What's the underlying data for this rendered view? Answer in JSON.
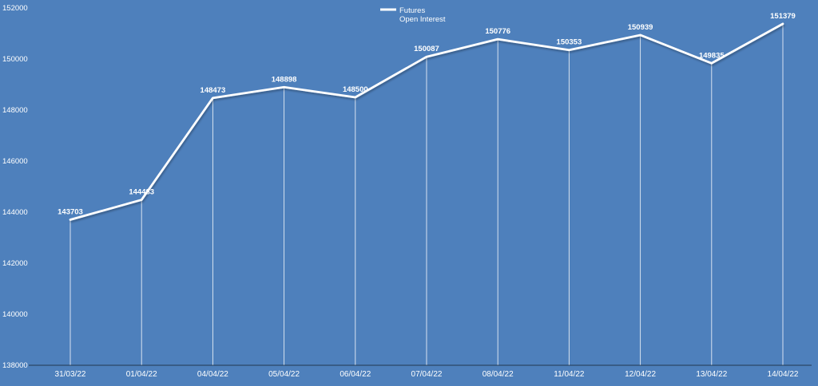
{
  "chart_data": {
    "type": "line",
    "categories": [
      "31/03/22",
      "01/04/22",
      "04/04/22",
      "05/04/22",
      "06/04/22",
      "07/04/22",
      "08/04/22",
      "11/04/22",
      "12/04/22",
      "13/04/22",
      "14/04/22"
    ],
    "series": [
      {
        "name": "Futures Open Interest",
        "values": [
          143703,
          144483,
          148473,
          148898,
          148500,
          150087,
          150776,
          150353,
          150939,
          149835,
          151379
        ]
      }
    ],
    "title": "",
    "xlabel": "",
    "ylabel": "",
    "ylim": [
      138000,
      152000
    ],
    "ytick_step": 2000,
    "yticks": [
      "138000",
      "140000",
      "142000",
      "144000",
      "146000",
      "148000",
      "150000",
      "152000"
    ],
    "legend": [
      "Futures",
      "Open Interest"
    ],
    "legend_position": "top-center",
    "grid": "vertical-drop-lines",
    "line_color": "#ffffff",
    "background_color": "#4e80bc",
    "label_color": "#ffffff"
  }
}
